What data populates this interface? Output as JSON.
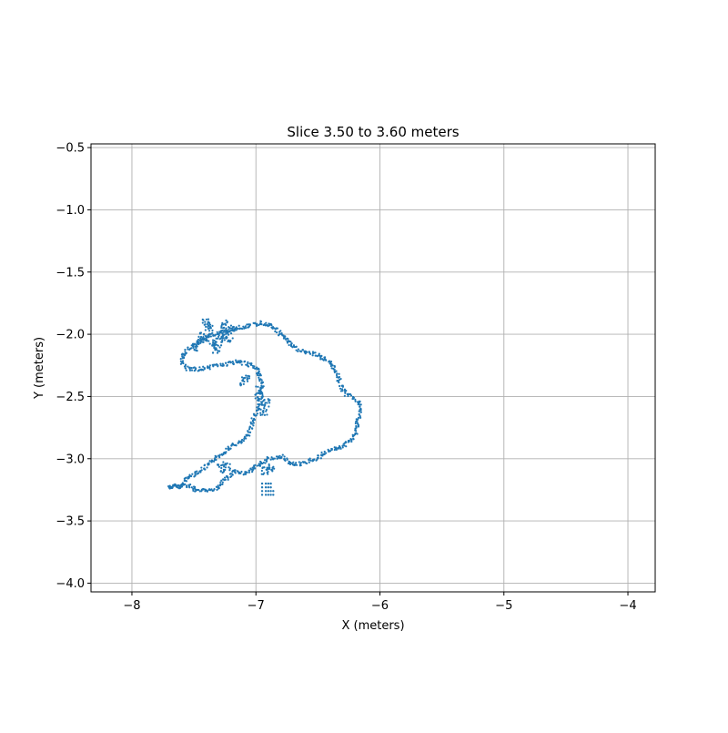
{
  "chart_data": {
    "type": "scatter",
    "title": "Slice 3.50 to 3.60 meters",
    "xlabel": "X (meters)",
    "ylabel": "Y (meters)",
    "xlim": [
      -8.33,
      -3.78
    ],
    "ylim": [
      -4.07,
      -0.47
    ],
    "x_ticks": [
      -8,
      -7,
      -6,
      -5,
      -4
    ],
    "x_tick_labels": [
      "−8",
      "−7",
      "−6",
      "−5",
      "−4"
    ],
    "y_ticks": [
      -0.5,
      -1.0,
      -1.5,
      -2.0,
      -2.5,
      -3.0,
      -3.5,
      -4.0
    ],
    "y_tick_labels": [
      "−0.5",
      "−1.0",
      "−1.5",
      "−2.0",
      "−2.5",
      "−3.0",
      "−3.5",
      "−4.0"
    ],
    "grid": true,
    "point_color": "#1f77b4",
    "outer_contour": [
      [
        -7.7,
        -3.23
      ],
      [
        -7.6,
        -3.22
      ],
      [
        -7.55,
        -3.15
      ],
      [
        -7.45,
        -3.1
      ],
      [
        -7.38,
        -3.05
      ],
      [
        -7.3,
        -2.98
      ],
      [
        -7.2,
        -2.9
      ],
      [
        -7.1,
        -2.86
      ],
      [
        -7.05,
        -2.78
      ],
      [
        -7.02,
        -2.68
      ],
      [
        -6.98,
        -2.6
      ],
      [
        -6.95,
        -2.5
      ],
      [
        -6.95,
        -2.4
      ],
      [
        -6.98,
        -2.3
      ],
      [
        -7.02,
        -2.25
      ],
      [
        -7.15,
        -2.22
      ],
      [
        -7.3,
        -2.25
      ],
      [
        -7.45,
        -2.28
      ],
      [
        -7.55,
        -2.28
      ],
      [
        -7.6,
        -2.22
      ],
      [
        -7.58,
        -2.15
      ],
      [
        -7.5,
        -2.08
      ],
      [
        -7.42,
        -2.04
      ],
      [
        -7.35,
        -2.0
      ],
      [
        -7.25,
        -1.98
      ],
      [
        -7.15,
        -1.95
      ],
      [
        -7.05,
        -1.93
      ],
      [
        -6.95,
        -1.91
      ],
      [
        -6.88,
        -1.93
      ],
      [
        -6.82,
        -1.98
      ],
      [
        -6.75,
        -2.05
      ],
      [
        -6.7,
        -2.1
      ],
      [
        -6.6,
        -2.15
      ],
      [
        -6.52,
        -2.16
      ],
      [
        -6.45,
        -2.2
      ],
      [
        -6.4,
        -2.22
      ],
      [
        -6.35,
        -2.3
      ],
      [
        -6.32,
        -2.4
      ],
      [
        -6.28,
        -2.48
      ],
      [
        -6.22,
        -2.5
      ],
      [
        -6.17,
        -2.56
      ],
      [
        -6.15,
        -2.6
      ],
      [
        -6.18,
        -2.7
      ],
      [
        -6.2,
        -2.8
      ],
      [
        -6.23,
        -2.85
      ],
      [
        -6.3,
        -2.9
      ],
      [
        -6.38,
        -2.93
      ],
      [
        -6.45,
        -2.96
      ],
      [
        -6.52,
        -3.0
      ],
      [
        -6.6,
        -3.03
      ],
      [
        -6.7,
        -3.05
      ],
      [
        -6.75,
        -3.02
      ],
      [
        -6.8,
        -2.98
      ],
      [
        -6.9,
        -3.0
      ],
      [
        -6.98,
        -3.05
      ],
      [
        -7.05,
        -3.1
      ],
      [
        -7.12,
        -3.12
      ],
      [
        -7.18,
        -3.1
      ],
      [
        -7.22,
        -3.15
      ],
      [
        -7.28,
        -3.2
      ],
      [
        -7.32,
        -3.24
      ],
      [
        -7.4,
        -3.26
      ],
      [
        -7.48,
        -3.25
      ],
      [
        -7.55,
        -3.22
      ],
      [
        -7.65,
        -3.22
      ],
      [
        -7.7,
        -3.23
      ]
    ],
    "inner_blobs": [
      [
        -7.4,
        -1.9
      ],
      [
        -7.38,
        -1.95
      ],
      [
        -7.42,
        -2.02
      ],
      [
        -7.3,
        -2.06
      ],
      [
        -7.28,
        -2.0
      ],
      [
        -7.22,
        -2.03
      ],
      [
        -7.2,
        -1.96
      ],
      [
        -7.25,
        -1.92
      ],
      [
        -7.45,
        -2.05
      ],
      [
        -7.48,
        -2.1
      ],
      [
        -7.35,
        -2.08
      ],
      [
        -7.32,
        -2.12
      ],
      [
        -6.98,
        -2.5
      ],
      [
        -6.92,
        -2.55
      ],
      [
        -6.94,
        -2.62
      ],
      [
        -6.97,
        -2.45
      ],
      [
        -7.08,
        -2.35
      ],
      [
        -7.1,
        -2.38
      ],
      [
        -7.28,
        -3.08
      ],
      [
        -7.24,
        -3.06
      ],
      [
        -6.88,
        -3.07
      ],
      [
        -6.92,
        -3.1
      ]
    ],
    "cluster": [
      [
        -6.95,
        -3.2
      ],
      [
        -6.92,
        -3.2
      ],
      [
        -6.9,
        -3.2
      ],
      [
        -6.88,
        -3.2
      ],
      [
        -6.95,
        -3.23
      ],
      [
        -6.92,
        -3.23
      ],
      [
        -6.9,
        -3.23
      ],
      [
        -6.88,
        -3.23
      ],
      [
        -6.95,
        -3.26
      ],
      [
        -6.92,
        -3.26
      ],
      [
        -6.9,
        -3.26
      ],
      [
        -6.88,
        -3.26
      ],
      [
        -6.95,
        -3.29
      ],
      [
        -6.92,
        -3.29
      ],
      [
        -6.9,
        -3.29
      ],
      [
        -6.88,
        -3.29
      ],
      [
        -6.86,
        -3.26
      ],
      [
        -6.86,
        -3.29
      ]
    ]
  }
}
